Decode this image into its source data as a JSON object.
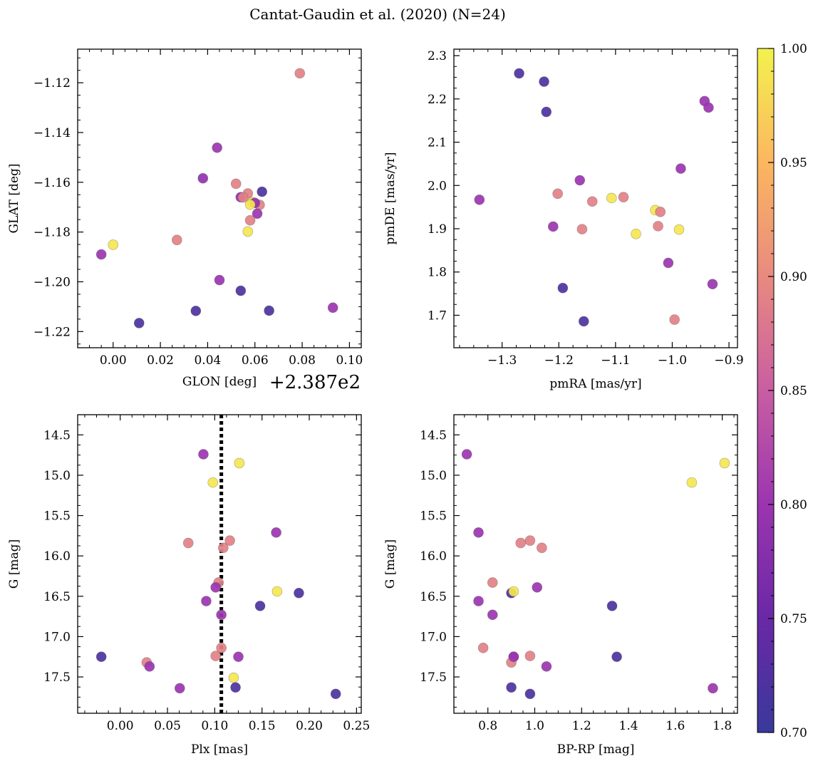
{
  "figure": {
    "title": "Cantat-Gaudin et al. (2020) (N=24)"
  },
  "colorbar": {
    "cmap": "plasma",
    "vmin": 0.7,
    "vmax": 1.0,
    "ticks": [
      "0.70",
      "0.75",
      "0.80",
      "0.85",
      "0.90",
      "0.95",
      "1.00"
    ]
  },
  "chart_data": [
    {
      "type": "scatter",
      "id": "glon-glat",
      "xlabel": "GLON [deg]",
      "ylabel": "GLAT [deg]",
      "x_offset_label": "+2.387e2",
      "xlim": [
        -0.015,
        0.105
      ],
      "ylim": [
        -1.2265,
        -1.1065
      ],
      "xticks": [
        0.0,
        0.02,
        0.04,
        0.06,
        0.08,
        0.1
      ],
      "xtick_labels": [
        "0.00",
        "0.02",
        "0.04",
        "0.06",
        "0.08",
        "0.10"
      ],
      "yticks": [
        -1.22,
        -1.2,
        -1.18,
        -1.16,
        -1.14,
        -1.12
      ],
      "ytick_labels": [
        "−1.22",
        "−1.20",
        "−1.18",
        "−1.16",
        "−1.14",
        "−1.12"
      ],
      "x": [
        0.079,
        0.044,
        0.038,
        0.052,
        0.063,
        0.054,
        0.057,
        0.055,
        0.062,
        0.059,
        0.06,
        0.061,
        0.058,
        0.057,
        0.027,
        0.0,
        -0.005,
        0.045,
        0.054,
        0.035,
        0.066,
        0.093,
        0.011,
        0.058
      ],
      "y": [
        -1.1162,
        -1.1461,
        -1.1584,
        -1.1606,
        -1.1638,
        -1.166,
        -1.1645,
        -1.1661,
        -1.1691,
        -1.168,
        -1.1683,
        -1.1726,
        -1.1753,
        -1.1798,
        -1.1832,
        -1.1851,
        -1.189,
        -1.1993,
        -1.2036,
        -1.2117,
        -1.2116,
        -1.2104,
        -1.2166,
        -1.169
      ],
      "color_values": [
        0.89,
        0.8,
        0.79,
        0.89,
        0.72,
        0.79,
        0.89,
        0.89,
        0.89,
        0.98,
        0.79,
        0.8,
        0.89,
        0.99,
        0.89,
        0.99,
        0.8,
        0.8,
        0.72,
        0.72,
        0.72,
        0.8,
        0.72,
        0.99
      ]
    },
    {
      "type": "scatter",
      "id": "pm",
      "xlabel": "pmRA [mas/yr]",
      "ylabel": "pmDE [mas/yr]",
      "xlim": [
        -1.385,
        -0.885
      ],
      "ylim": [
        1.625,
        2.315
      ],
      "xticks": [
        -1.3,
        -1.2,
        -1.1,
        -1.0,
        -0.9
      ],
      "xtick_labels": [
        "−1.3",
        "−1.2",
        "−1.1",
        "−1.0",
        "−0.9"
      ],
      "yticks": [
        1.7,
        1.8,
        1.9,
        2.0,
        2.1,
        2.2,
        2.3
      ],
      "ytick_labels": [
        "1.7",
        "1.8",
        "1.9",
        "2.0",
        "2.1",
        "2.2",
        "2.3"
      ],
      "x": [
        -1.27,
        -1.226,
        -1.222,
        -0.943,
        -0.936,
        -0.985,
        -1.163,
        -1.202,
        -1.34,
        -1.107,
        -1.086,
        -1.141,
        -1.03,
        -1.021,
        -1.21,
        -1.159,
        -1.025,
        -1.064,
        -0.988,
        -1.007,
        -0.929,
        -1.193,
        -1.156,
        -0.996
      ],
      "y": [
        2.259,
        2.24,
        2.17,
        2.195,
        2.18,
        2.039,
        2.012,
        1.981,
        1.967,
        1.971,
        1.973,
        1.963,
        1.943,
        1.939,
        1.905,
        1.899,
        1.906,
        1.888,
        1.898,
        1.821,
        1.772,
        1.763,
        1.686,
        1.69
      ],
      "color_values": [
        0.72,
        0.72,
        0.72,
        0.8,
        0.8,
        0.8,
        0.8,
        0.89,
        0.8,
        0.99,
        0.89,
        0.89,
        0.99,
        0.89,
        0.8,
        0.89,
        0.89,
        0.99,
        0.99,
        0.8,
        0.8,
        0.72,
        0.72,
        0.89
      ]
    },
    {
      "type": "scatter",
      "id": "plx-g",
      "xlabel": "Plx [mas]",
      "ylabel": "G [mag]",
      "xlim": [
        -0.045,
        0.255
      ],
      "ylim": [
        17.95,
        14.25
      ],
      "y_inverted": true,
      "xticks": [
        0.0,
        0.05,
        0.1,
        0.15,
        0.2,
        0.25
      ],
      "xtick_labels": [
        "0.00",
        "0.05",
        "0.10",
        "0.15",
        "0.20",
        "0.25"
      ],
      "yticks": [
        14.5,
        15.0,
        15.5,
        16.0,
        16.5,
        17.0,
        17.5
      ],
      "ytick_labels": [
        "14.5",
        "15.0",
        "15.5",
        "16.0",
        "16.5",
        "17.0",
        "17.5"
      ],
      "vline_x": 0.107,
      "x": [
        0.088,
        0.126,
        0.098,
        0.165,
        0.072,
        0.116,
        0.109,
        0.104,
        0.101,
        0.166,
        0.189,
        0.091,
        0.148,
        0.107,
        0.107,
        0.101,
        0.125,
        -0.02,
        0.028,
        0.031,
        0.063,
        0.12,
        0.122,
        0.228
      ],
      "y": [
        14.74,
        14.85,
        15.09,
        15.71,
        15.84,
        15.81,
        15.9,
        16.33,
        16.39,
        16.44,
        16.46,
        16.56,
        16.62,
        16.73,
        17.14,
        17.24,
        17.25,
        17.25,
        17.32,
        17.37,
        17.64,
        17.51,
        17.63,
        17.71
      ],
      "color_values": [
        0.8,
        0.99,
        0.99,
        0.8,
        0.89,
        0.89,
        0.89,
        0.89,
        0.8,
        0.99,
        0.72,
        0.8,
        0.72,
        0.8,
        0.89,
        0.89,
        0.8,
        0.72,
        0.89,
        0.8,
        0.8,
        0.99,
        0.72,
        0.72
      ]
    },
    {
      "type": "scatter",
      "id": "cmd",
      "xlabel": "BP-RP [mag]",
      "ylabel": "G [mag]",
      "xlim": [
        0.655,
        1.865
      ],
      "ylim": [
        17.95,
        14.25
      ],
      "y_inverted": true,
      "xticks": [
        0.8,
        1.0,
        1.2,
        1.4,
        1.6,
        1.8
      ],
      "xtick_labels": [
        "0.8",
        "1.0",
        "1.2",
        "1.4",
        "1.6",
        "1.8"
      ],
      "yticks": [
        14.5,
        15.0,
        15.5,
        16.0,
        16.5,
        17.0,
        17.5
      ],
      "ytick_labels": [
        "14.5",
        "15.0",
        "15.5",
        "16.0",
        "16.5",
        "17.0",
        "17.5"
      ],
      "x": [
        0.71,
        1.81,
        1.67,
        0.76,
        0.98,
        0.94,
        1.03,
        0.82,
        1.01,
        0.9,
        0.91,
        0.76,
        0.82,
        1.33,
        0.78,
        0.98,
        0.91,
        0.9,
        1.35,
        1.05,
        0.9,
        1.76,
        0.98,
        0.91
      ],
      "y": [
        14.74,
        14.85,
        15.09,
        15.71,
        15.81,
        15.84,
        15.9,
        16.33,
        16.39,
        16.46,
        16.44,
        16.56,
        16.73,
        16.62,
        17.14,
        17.24,
        17.25,
        17.32,
        17.25,
        17.37,
        17.63,
        17.64,
        17.71,
        17.25
      ],
      "color_values": [
        0.8,
        0.99,
        0.99,
        0.8,
        0.89,
        0.89,
        0.89,
        0.89,
        0.8,
        0.72,
        0.99,
        0.8,
        0.8,
        0.72,
        0.89,
        0.89,
        0.8,
        0.89,
        0.72,
        0.8,
        0.72,
        0.8,
        0.72,
        0.8
      ]
    }
  ]
}
